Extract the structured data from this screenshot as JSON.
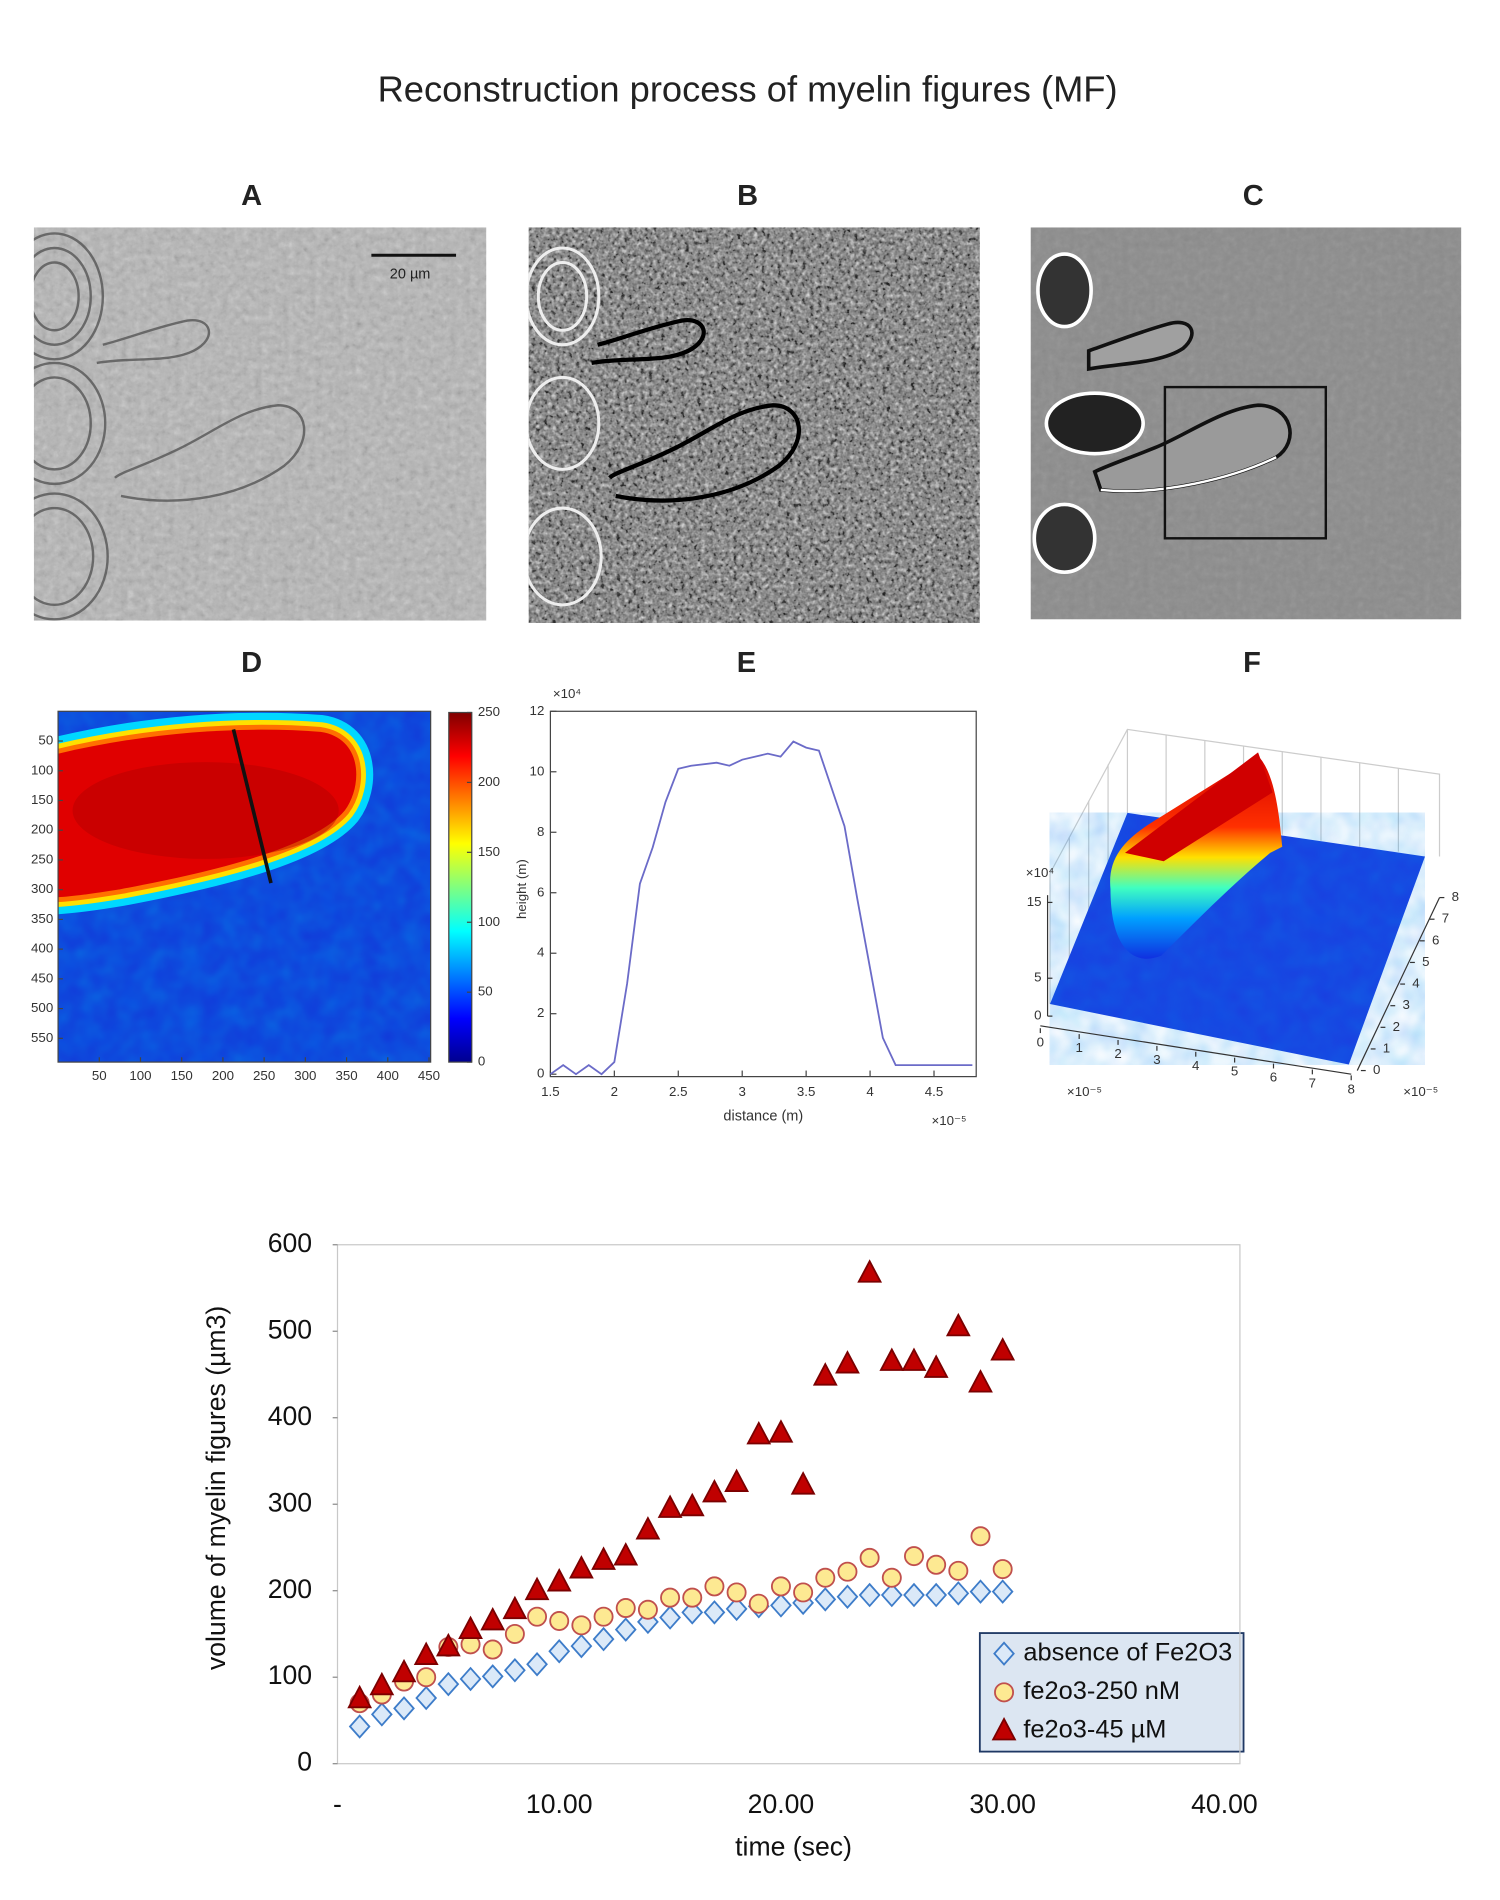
{
  "title": "Reconstruction process of myelin figures (MF)",
  "panel_labels": [
    "A",
    "B",
    "C",
    "D",
    "E",
    "F"
  ],
  "scale_bar": "20 µm",
  "chart_data": [
    {
      "type": "heatmap",
      "xlim": [
        0,
        452
      ],
      "ylim": [
        0,
        590
      ],
      "y_reversed": true,
      "xticks": [
        50,
        100,
        150,
        200,
        250,
        300,
        350,
        400,
        450
      ],
      "yticks": [
        50,
        100,
        150,
        200,
        250,
        300,
        350,
        400,
        450,
        500,
        550
      ],
      "colorbar": {
        "lim": [
          0,
          250
        ],
        "ticks": [
          0,
          50,
          100,
          150,
          200,
          250
        ]
      }
    },
    {
      "type": "line",
      "color": "#6b6bc8",
      "xlabel": "distance (m)",
      "ylabel": "height (m)",
      "x": [
        1.5,
        1.6,
        1.7,
        1.8,
        1.9,
        2.0,
        2.1,
        2.2,
        2.3,
        2.4,
        2.5,
        2.6,
        2.8,
        2.9,
        3.0,
        3.2,
        3.3,
        3.4,
        3.5,
        3.6,
        3.8,
        3.9,
        4.0,
        4.1,
        4.2,
        4.3,
        4.4,
        4.5,
        4.8
      ],
      "values": [
        0,
        0.3,
        0,
        0.3,
        0,
        0.4,
        3,
        6.3,
        7.5,
        9,
        10.1,
        10.2,
        10.3,
        10.2,
        10.4,
        10.6,
        10.5,
        11,
        10.8,
        10.7,
        8.2,
        5.8,
        3.5,
        1.2,
        0.3,
        0.3,
        0.3,
        0.3,
        0.3
      ],
      "xlim": [
        1.5,
        4.83
      ],
      "ylim": [
        0,
        12
      ],
      "xticks": [
        1.5,
        2,
        2.5,
        3,
        3.5,
        4,
        4.5
      ],
      "yticks": [
        0,
        2,
        4,
        6,
        8,
        10,
        12
      ],
      "x_multiplier": "×10⁻⁵",
      "y_multiplier": "×10⁴"
    },
    {
      "type": "surface",
      "xlim": [
        0,
        8
      ],
      "ylim": [
        0,
        8
      ],
      "zlim": [
        0,
        15
      ],
      "xticks": [
        0,
        1,
        2,
        3,
        4,
        5,
        6,
        7,
        8
      ],
      "yticks": [
        0,
        1,
        2,
        3,
        4,
        5,
        6,
        7,
        8
      ],
      "zticks": [
        0,
        5,
        15
      ],
      "x_multiplier": "×10⁻⁵",
      "y_multiplier": "×10⁻⁵",
      "z_multiplier": "×10⁴"
    },
    {
      "type": "scatter",
      "xlabel": "time (sec)",
      "ylabel": "volume of myelin figures (µm3)",
      "x": [
        1,
        2,
        3,
        4,
        5,
        6,
        7,
        8,
        9,
        10,
        11,
        12,
        13,
        14,
        15,
        16,
        17,
        18,
        19,
        20,
        21,
        22,
        23,
        24,
        25,
        26,
        27,
        28,
        29,
        30
      ],
      "xlim": [
        0,
        40.7
      ],
      "ylim": [
        0,
        600
      ],
      "xticks": [
        {
          "value": 0,
          "label": "-"
        },
        {
          "value": 10,
          "label": "10.00"
        },
        {
          "value": 20,
          "label": "20.00"
        },
        {
          "value": 30,
          "label": "30.00"
        },
        {
          "value": 40,
          "label": "40.00"
        }
      ],
      "yticks": [
        0,
        100,
        200,
        300,
        400,
        500,
        600
      ],
      "grid": false,
      "legend": "lower right",
      "series": [
        {
          "name": "absence of Fe2O3",
          "marker": "diamond",
          "color": "#dbe9f8",
          "edge_color": "#3d7cc9",
          "values": [
            43,
            57,
            64,
            76,
            92,
            98,
            101,
            108,
            115,
            130,
            136,
            144,
            155,
            164,
            169,
            175,
            175,
            179,
            182,
            183,
            186,
            190,
            193,
            195,
            195,
            195,
            195,
            197,
            199,
            199
          ]
        },
        {
          "name": "fe2o3-250 nM",
          "marker": "circle",
          "color": "#fde992",
          "edge_color": "#c0504d",
          "values": [
            70,
            80,
            95,
            100,
            135,
            138,
            132,
            150,
            170,
            165,
            160,
            170,
            180,
            178,
            192,
            192,
            205,
            198,
            185,
            205,
            198,
            215,
            222,
            238,
            215,
            240,
            230,
            223,
            263,
            225
          ]
        },
        {
          "name": "fe2o3-45 µM",
          "marker": "triangle",
          "color": "#c00000",
          "edge_color": "#7b0000",
          "values": [
            75,
            90,
            105,
            125,
            135,
            155,
            165,
            178,
            200,
            210,
            225,
            235,
            240,
            270,
            295,
            297,
            313,
            325,
            380,
            382,
            322,
            448,
            462,
            567,
            465,
            465,
            457,
            505,
            440,
            477
          ]
        }
      ]
    }
  ]
}
